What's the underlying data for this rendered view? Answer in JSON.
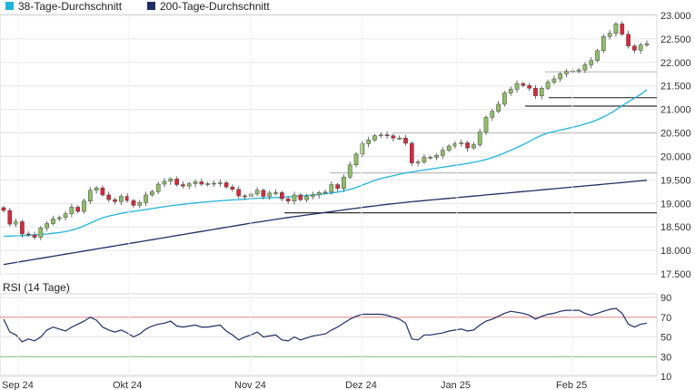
{
  "chart_data": [
    {
      "type": "candlestick",
      "title": "",
      "legend": [
        {
          "label": "38-Tage-Durchschnitt",
          "color": "#1fb4dc"
        },
        {
          "label": "200-Tage-Durchschnitt",
          "color": "#1f2f66"
        }
      ],
      "ylim": [
        17500,
        23000
      ],
      "y_ticks": [
        "17.500",
        "18.000",
        "18.500",
        "19.000",
        "19.500",
        "20.000",
        "20.500",
        "21.000",
        "21.500",
        "22.000",
        "22.500",
        "23.000"
      ],
      "x_ticks": [
        "Sep 24",
        "Okt 24",
        "Nov 24",
        "Dez 24",
        "Jan 25",
        "Feb 25"
      ],
      "up_color": "#8fbf67",
      "down_color": "#d8283c",
      "candles_close": [
        18850,
        18560,
        18610,
        18350,
        18330,
        18280,
        18480,
        18570,
        18670,
        18700,
        18780,
        18920,
        18830,
        19050,
        19280,
        19330,
        19180,
        19080,
        19040,
        19150,
        19060,
        18960,
        19020,
        19180,
        19250,
        19410,
        19470,
        19520,
        19400,
        19370,
        19420,
        19460,
        19410,
        19420,
        19430,
        19440,
        19350,
        19300,
        19160,
        19150,
        19200,
        19280,
        19150,
        19220,
        19230,
        19100,
        19050,
        19180,
        19080,
        19150,
        19180,
        19230,
        19240,
        19400,
        19320,
        19560,
        19820,
        20050,
        20270,
        20350,
        20440,
        20460,
        20440,
        20390,
        20390,
        20280,
        19860,
        19880,
        19980,
        19980,
        20020,
        20130,
        20220,
        20270,
        20290,
        20180,
        20250,
        20520,
        20830,
        20960,
        21110,
        21350,
        21430,
        21550,
        21510,
        21450,
        21290,
        21450,
        21580,
        21650,
        21760,
        21810,
        21820,
        21840,
        21950,
        22040,
        22250,
        22550,
        22620,
        22820,
        22600,
        22350,
        22260,
        22370,
        22400
      ],
      "support_lines": [
        18800,
        19650,
        20500,
        21070,
        21250,
        21800
      ],
      "ma38": [
        18300,
        18305,
        18310,
        18315,
        18320,
        18330,
        18340,
        18350,
        18365,
        18380,
        18400,
        18430,
        18470,
        18520,
        18580,
        18640,
        18690,
        18730,
        18760,
        18790,
        18810,
        18830,
        18850,
        18870,
        18890,
        18910,
        18930,
        18950,
        18965,
        18980,
        18995,
        19010,
        19025,
        19035,
        19045,
        19055,
        19065,
        19075,
        19080,
        19090,
        19100,
        19110,
        19115,
        19120,
        19125,
        19130,
        19140,
        19150,
        19160,
        19170,
        19180,
        19190,
        19205,
        19220,
        19240,
        19265,
        19300,
        19340,
        19390,
        19440,
        19490,
        19530,
        19560,
        19590,
        19620,
        19650,
        19670,
        19690,
        19710,
        19730,
        19750,
        19770,
        19790,
        19810,
        19830,
        19850,
        19875,
        19900,
        19935,
        19975,
        20020,
        20075,
        20130,
        20190,
        20250,
        20320,
        20390,
        20450,
        20500,
        20530,
        20560,
        20590,
        20620,
        20650,
        20690,
        20730,
        20780,
        20840,
        20910,
        20990,
        21080,
        21160,
        21240,
        21320,
        21420
      ],
      "ma200": [
        17700,
        17722,
        17744,
        17766,
        17788,
        17810,
        17832,
        17854,
        17876,
        17898,
        17920,
        17942,
        17964,
        17986,
        18008,
        18030,
        18052,
        18074,
        18096,
        18118,
        18140,
        18162,
        18184,
        18206,
        18228,
        18250,
        18272,
        18294,
        18316,
        18338,
        18360,
        18382,
        18404,
        18426,
        18448,
        18470,
        18492,
        18514,
        18536,
        18558,
        18580,
        18600,
        18620,
        18640,
        18660,
        18680,
        18700,
        18718,
        18736,
        18754,
        18772,
        18790,
        18808,
        18826,
        18844,
        18862,
        18880,
        18897,
        18914,
        18931,
        18948,
        18965,
        18980,
        18994,
        19008,
        19022,
        19036,
        19048,
        19060,
        19072,
        19084,
        19096,
        19108,
        19120,
        19132,
        19144,
        19156,
        19168,
        19180,
        19192,
        19204,
        19216,
        19228,
        19240,
        19252,
        19264,
        19276,
        19288,
        19300,
        19312,
        19324,
        19336,
        19348,
        19360,
        19372,
        19384,
        19396,
        19408,
        19420,
        19432,
        19444,
        19456,
        19468,
        19480,
        19492
      ]
    },
    {
      "type": "line",
      "title": "RSI (14 Tage)",
      "ylim": [
        10,
        90
      ],
      "y_ticks": [
        "90",
        "70",
        "50",
        "30",
        "10"
      ],
      "ref_lines": [
        {
          "value": 70,
          "color": "#e28a8a"
        },
        {
          "value": 30,
          "color": "#7fc07f"
        }
      ],
      "series": [
        {
          "color": "#1f2f66",
          "values": [
            68,
            55,
            52,
            45,
            48,
            46,
            50,
            57,
            60,
            58,
            56,
            60,
            63,
            66,
            70,
            67,
            60,
            57,
            55,
            57,
            54,
            50,
            53,
            58,
            61,
            63,
            64,
            66,
            61,
            60,
            61,
            62,
            60,
            60,
            61,
            62,
            56,
            52,
            47,
            50,
            52,
            55,
            50,
            51,
            52,
            47,
            46,
            50,
            47,
            49,
            51,
            52,
            53,
            57,
            60,
            64,
            68,
            71,
            73,
            73,
            73,
            73,
            72,
            70,
            68,
            64,
            48,
            47,
            52,
            52,
            53,
            54,
            56,
            57,
            58,
            56,
            57,
            62,
            66,
            68,
            71,
            74,
            76,
            75,
            74,
            72,
            68,
            71,
            73,
            74,
            76,
            77,
            77,
            77,
            74,
            72,
            74,
            76,
            78,
            79,
            74,
            63,
            60,
            63,
            64
          ]
        }
      ]
    }
  ]
}
